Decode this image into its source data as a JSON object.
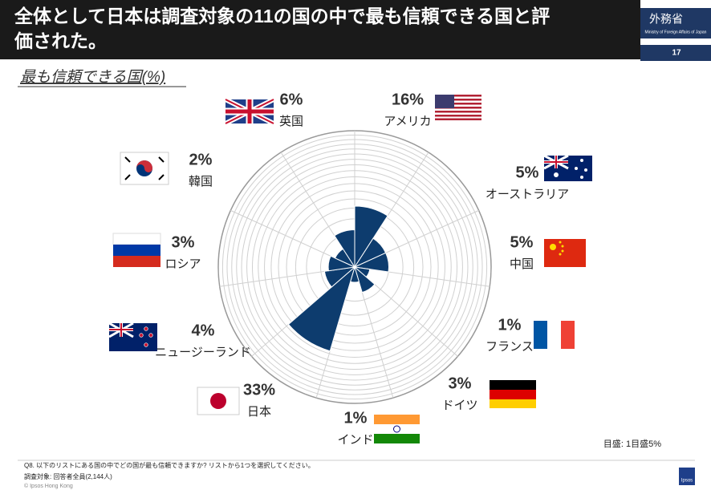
{
  "header": {
    "title_line1": "全体として日本は調査対象の11の国の中で最も信頼できる国と評",
    "title_line2": "価された。",
    "logo": "外務省",
    "logo_sub": "Ministry of Foreign Affairs of Japan",
    "page": "17"
  },
  "chart_data": {
    "type": "polar",
    "title": "最も信頼できる国(%)",
    "scale": "sqrt",
    "categories": [
      "アメリカ",
      "オーストラリア",
      "中国",
      "フランス",
      "ドイツ",
      "インド",
      "日本",
      "ニュージーランド",
      "ロシア",
      "韓国",
      "英国"
    ],
    "values": [
      16,
      5,
      5,
      1,
      3,
      1,
      33,
      4,
      3,
      2,
      6
    ],
    "value_labels": [
      "16%",
      "5%",
      "5%",
      "1%",
      "3%",
      "1%",
      "33%",
      "4%",
      "3%",
      "2%",
      "6%"
    ],
    "color": "#0d3c6e",
    "rlim": [
      0,
      80
    ],
    "rticks": [
      5,
      10,
      15,
      20,
      25,
      30,
      35,
      40,
      45,
      50,
      55,
      60,
      65,
      70,
      75,
      80
    ],
    "note": "目盛: 1目盛5%"
  },
  "footer": {
    "question": "Q8. 以下のリストにある国の中でどの国が最も信頼できますか? リストから1つを選択してください。",
    "sample": "調査対象: 回答者全員(2,144人)",
    "copyright": "© Ipsos Hong Kong",
    "brand": "Ipsos"
  }
}
